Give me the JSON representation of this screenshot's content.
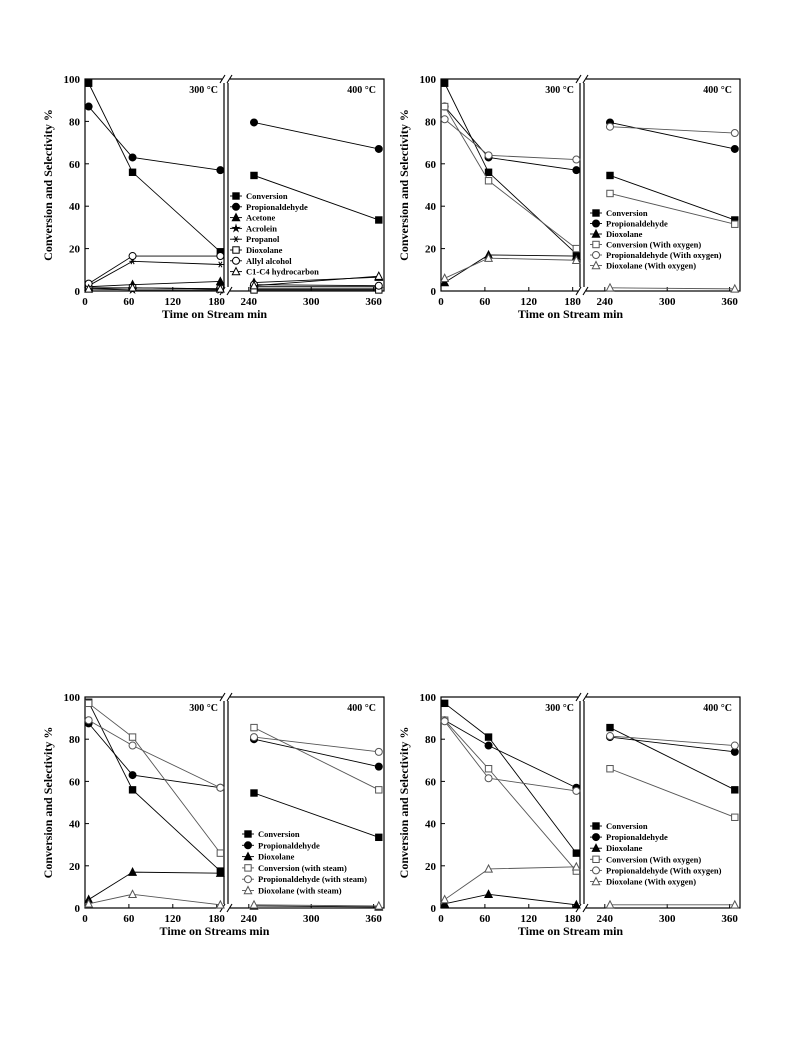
{
  "chart_data": [
    {
      "type": "line",
      "ylabel": "Conversion and Selectivity %",
      "xlabel": "Time on Stream min",
      "temp_left": "300 °C",
      "temp_right": "400 °C",
      "ylim": [
        0,
        100
      ],
      "x_ranges": [
        [
          0,
          190
        ],
        [
          220,
          370
        ]
      ],
      "yticks": [
        "0",
        "20",
        "40",
        "60",
        "80",
        "100"
      ],
      "xticks_left": [
        "0",
        "60",
        "120",
        "180"
      ],
      "xticks_right": [
        "240",
        "300",
        "360"
      ],
      "series": [
        {
          "name": "Conversion",
          "marker": "square-filled",
          "color": "#000000",
          "x": [
            5,
            65,
            185,
            245,
            365
          ],
          "y": [
            98,
            56,
            18.5,
            54.5,
            33.5
          ]
        },
        {
          "name": "Propionaldehyde",
          "marker": "circle-filled",
          "color": "#000000",
          "x": [
            5,
            65,
            185,
            245,
            365
          ],
          "y": [
            87,
            63,
            57,
            79.5,
            67
          ]
        },
        {
          "name": "Acetone",
          "marker": "triangle-filled",
          "color": "#000000",
          "x": [
            5,
            65,
            185,
            245,
            365
          ],
          "y": [
            2,
            3,
            4.5,
            4,
            6.5
          ]
        },
        {
          "name": "Acrolein",
          "marker": "star",
          "color": "#000000",
          "x": [
            5,
            65,
            185,
            245,
            365
          ],
          "y": [
            1,
            0.5,
            0.5,
            1,
            1
          ]
        },
        {
          "name": "Propanol",
          "marker": "asterisk",
          "color": "#000000",
          "x": [
            5,
            65,
            185,
            245,
            365
          ],
          "y": [
            2.5,
            14,
            12.5,
            2,
            2
          ]
        },
        {
          "name": "Dioxolane",
          "marker": "square-open",
          "color": "#000000",
          "x": [
            5,
            65,
            185,
            245,
            365
          ],
          "y": [
            1.5,
            1.5,
            1,
            0.5,
            0.5
          ]
        },
        {
          "name": "Allyl alcohol",
          "marker": "circle-open",
          "color": "#000000",
          "x": [
            5,
            65,
            185,
            245,
            365
          ],
          "y": [
            3.5,
            16.5,
            16.5,
            3,
            2.5
          ]
        },
        {
          "name": "C1-C4 hydrocarbon",
          "marker": "triangle-open",
          "color": "#000000",
          "x": [
            5,
            65,
            185,
            245,
            365
          ],
          "y": [
            1,
            1.5,
            1,
            2.5,
            7
          ]
        }
      ]
    },
    {
      "type": "line",
      "ylabel": "Conversion and Selectivity %",
      "xlabel": "Time on Stream min",
      "temp_left": "300 °C",
      "temp_right": "400 °C",
      "ylim": [
        0,
        100
      ],
      "x_ranges": [
        [
          0,
          190
        ],
        [
          220,
          370
        ]
      ],
      "yticks": [
        "0",
        "20",
        "40",
        "60",
        "80",
        "100"
      ],
      "xticks_left": [
        "0",
        "60",
        "120",
        "180"
      ],
      "xticks_right": [
        "240",
        "300",
        "360"
      ],
      "series": [
        {
          "name": "Conversion",
          "marker": "square-filled",
          "color": "#000000",
          "x": [
            5,
            65,
            185,
            245,
            365
          ],
          "y": [
            98,
            56,
            17.5,
            54.5,
            33.5
          ]
        },
        {
          "name": "Propionaldehyde",
          "marker": "circle-filled",
          "color": "#000000",
          "x": [
            5,
            65,
            185,
            245,
            365
          ],
          "y": [
            87,
            63,
            57,
            79.5,
            67
          ]
        },
        {
          "name": "Dioxolane",
          "marker": "triangle-filled",
          "color": "#000000",
          "x": [
            5,
            65,
            185
          ],
          "y": [
            4,
            17,
            16.5
          ]
        },
        {
          "name": "Conversion (With oxygen)",
          "marker": "square-open",
          "color": "#555555",
          "x": [
            5,
            65,
            185,
            245,
            365
          ],
          "y": [
            87,
            52,
            20,
            46,
            31.5
          ]
        },
        {
          "name": "Propionaldehyde (With oxygen)",
          "marker": "circle-open",
          "color": "#555555",
          "x": [
            5,
            65,
            185,
            245,
            365
          ],
          "y": [
            81,
            64,
            62,
            77.5,
            74.5
          ]
        },
        {
          "name": "Dioxolane (With oxygen)",
          "marker": "triangle-open",
          "color": "#555555",
          "x": [
            5,
            65,
            185,
            245,
            365
          ],
          "y": [
            6,
            15.5,
            14.5,
            1.5,
            1
          ]
        }
      ]
    },
    {
      "type": "line",
      "ylabel": "Conversion and Selectivity %",
      "xlabel": "Time on Streams min",
      "temp_left": "300 °C",
      "temp_right": "400 °C",
      "ylim": [
        0,
        100
      ],
      "x_ranges": [
        [
          0,
          190
        ],
        [
          220,
          370
        ]
      ],
      "yticks": [
        "0",
        "20",
        "40",
        "60",
        "80",
        "100"
      ],
      "xticks_left": [
        "0",
        "60",
        "120",
        "180"
      ],
      "xticks_right": [
        "240",
        "300",
        "360"
      ],
      "series": [
        {
          "name": "Conversion",
          "marker": "square-filled",
          "color": "#000000",
          "x": [
            5,
            65,
            185,
            245,
            365
          ],
          "y": [
            97.5,
            56,
            17.5,
            54.5,
            33.5
          ]
        },
        {
          "name": "Propionaldehyde",
          "marker": "circle-filled",
          "color": "#000000",
          "x": [
            5,
            65,
            185,
            245,
            365
          ],
          "y": [
            87.5,
            63,
            57,
            80,
            67
          ]
        },
        {
          "name": "Dioxolane",
          "marker": "triangle-filled",
          "color": "#000000",
          "x": [
            5,
            65,
            185,
            245,
            365
          ],
          "y": [
            4,
            17,
            16.5,
            1,
            0.5
          ]
        },
        {
          "name": "Conversion (with steam)",
          "marker": "square-open",
          "color": "#555555",
          "x": [
            5,
            65,
            185,
            245,
            365
          ],
          "y": [
            97,
            81,
            26,
            85.5,
            56
          ]
        },
        {
          "name": "Propionaldehyde (with steam)",
          "marker": "circle-open",
          "color": "#555555",
          "x": [
            5,
            65,
            185,
            245,
            365
          ],
          "y": [
            89,
            77,
            57,
            81,
            74
          ]
        },
        {
          "name": "Dioxolane (with steam)",
          "marker": "triangle-open",
          "color": "#555555",
          "x": [
            5,
            65,
            185,
            245,
            365
          ],
          "y": [
            2,
            6.5,
            1.5,
            1.5,
            1
          ]
        }
      ]
    },
    {
      "type": "line",
      "ylabel": "Conversion and Selectivity %",
      "xlabel": "Time on Stream min",
      "temp_left": "300 °C",
      "temp_right": "400 °C",
      "ylim": [
        0,
        100
      ],
      "x_ranges": [
        [
          0,
          190
        ],
        [
          220,
          370
        ]
      ],
      "yticks": [
        "0",
        "20",
        "40",
        "60",
        "80",
        "100"
      ],
      "xticks_left": [
        "0",
        "60",
        "120",
        "180"
      ],
      "xticks_right": [
        "240",
        "300",
        "360"
      ],
      "series": [
        {
          "name": "Conversion",
          "marker": "square-filled",
          "color": "#000000",
          "x": [
            5,
            65,
            185,
            245,
            365
          ],
          "y": [
            97,
            81,
            26,
            85.5,
            56
          ]
        },
        {
          "name": "Propionaldehyde",
          "marker": "circle-filled",
          "color": "#000000",
          "x": [
            5,
            65,
            185,
            245,
            365
          ],
          "y": [
            89,
            77,
            57,
            81,
            74
          ]
        },
        {
          "name": "Dioxolane",
          "marker": "triangle-filled",
          "color": "#000000",
          "x": [
            5,
            65,
            185
          ],
          "y": [
            2,
            6.5,
            1.5
          ]
        },
        {
          "name": "Conversion (With oxygen)",
          "marker": "square-open",
          "color": "#555555",
          "x": [
            5,
            65,
            185,
            245,
            365
          ],
          "y": [
            89,
            66,
            17.5,
            66,
            43
          ]
        },
        {
          "name": "Propionaldehyde (With oxygen)",
          "marker": "circle-open",
          "color": "#555555",
          "x": [
            5,
            65,
            185,
            245,
            365
          ],
          "y": [
            88.5,
            61.5,
            55.5,
            81.5,
            77
          ]
        },
        {
          "name": "Dioxolane (With oxygen)",
          "marker": "triangle-open",
          "color": "#555555",
          "x": [
            5,
            65,
            185,
            245,
            365
          ],
          "y": [
            4,
            18.5,
            19.5,
            1.5,
            1.5
          ]
        }
      ]
    }
  ]
}
